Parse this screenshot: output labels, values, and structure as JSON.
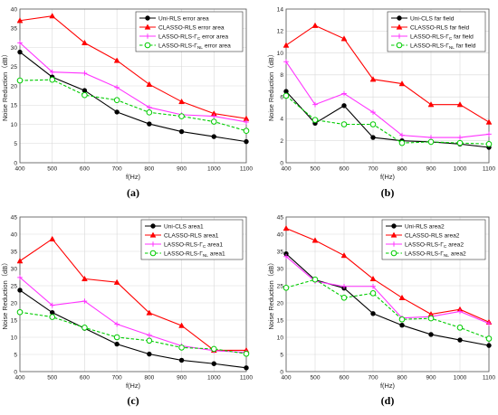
{
  "colors": {
    "black": "#000000",
    "red": "#ff0000",
    "magenta": "#ff33ff",
    "green": "#00cc00"
  },
  "chart_data": [
    {
      "type": "line",
      "caption": "(a)",
      "xlabel": "f(Hz)",
      "ylabel": "Noise Reduction（dB）",
      "x": [
        400,
        500,
        600,
        700,
        800,
        900,
        1000,
        1100
      ],
      "xlim": [
        400,
        1100
      ],
      "ylim": [
        0,
        40
      ],
      "yticks": [
        0,
        5,
        10,
        15,
        20,
        25,
        30,
        35,
        40
      ],
      "grid": true,
      "legend_position": "top-right",
      "series": [
        {
          "name": "Uni-RLS error area",
          "marker": "dot",
          "values": [
            28.8,
            22.3,
            18.8,
            13.2,
            10.1,
            8.1,
            6.8,
            5.5
          ]
        },
        {
          "name": "CLASSO-RLS error area",
          "marker": "triangle",
          "values": [
            37.0,
            38.2,
            31.2,
            26.6,
            20.4,
            15.9,
            12.8,
            11.5
          ]
        },
        {
          "name": "LASSO-RLS-Γ_C error area",
          "marker": "plus",
          "values": [
            31.2,
            23.6,
            23.3,
            19.6,
            14.4,
            12.5,
            12.1,
            10.6
          ]
        },
        {
          "name": "LASSO-RLS-Γ_NL error area",
          "marker": "circle",
          "dashed": true,
          "values": [
            21.4,
            21.6,
            17.6,
            16.3,
            13.1,
            12.1,
            10.7,
            8.3
          ]
        }
      ]
    },
    {
      "type": "line",
      "caption": "(b)",
      "xlabel": "f(Hz)",
      "ylabel": "Noise Reduction（dB）",
      "x": [
        400,
        500,
        600,
        700,
        800,
        900,
        1000,
        1100
      ],
      "xlim": [
        400,
        1100
      ],
      "ylim": [
        0,
        14
      ],
      "yticks": [
        0,
        2,
        4,
        6,
        8,
        10,
        12,
        14
      ],
      "grid": true,
      "legend_position": "top-right",
      "series": [
        {
          "name": "Uni-CLS far field",
          "marker": "dot",
          "values": [
            6.5,
            3.6,
            5.2,
            2.3,
            2.0,
            1.9,
            1.7,
            1.4
          ]
        },
        {
          "name": "CLASSO-RLS far field",
          "marker": "triangle",
          "values": [
            10.7,
            12.5,
            11.3,
            7.6,
            7.2,
            5.3,
            5.3,
            3.7
          ]
        },
        {
          "name": "LASSO-RLS-Γ_C far field",
          "marker": "plus",
          "values": [
            9.2,
            5.3,
            6.3,
            4.6,
            2.5,
            2.3,
            2.3,
            2.6
          ]
        },
        {
          "name": "LASSO-RLS-Γ_NL far field",
          "marker": "circle",
          "dashed": true,
          "values": [
            6.1,
            3.9,
            3.5,
            3.5,
            1.8,
            1.9,
            1.8,
            1.7
          ]
        }
      ]
    },
    {
      "type": "line",
      "caption": "(c)",
      "xlabel": "f(Hz)",
      "ylabel": "Noise Reduction（dB）",
      "x": [
        400,
        500,
        600,
        700,
        800,
        900,
        1000,
        1100
      ],
      "xlim": [
        400,
        1100
      ],
      "ylim": [
        0,
        45
      ],
      "yticks": [
        0,
        5,
        10,
        15,
        20,
        25,
        30,
        35,
        40,
        45
      ],
      "grid": true,
      "legend_position": "top-right",
      "series": [
        {
          "name": "Uni-CLS area1",
          "marker": "dot",
          "values": [
            23.7,
            17.2,
            12.6,
            8.0,
            5.1,
            3.3,
            2.3,
            1.1
          ]
        },
        {
          "name": "CLASSO-RLS area1",
          "marker": "triangle",
          "values": [
            32.2,
            38.6,
            27.0,
            26.0,
            17.1,
            13.4,
            6.2,
            6.2
          ]
        },
        {
          "name": "LASSO-RLS-Γ_C area1",
          "marker": "plus",
          "values": [
            27.4,
            19.3,
            20.5,
            13.8,
            10.6,
            7.5,
            6.1,
            5.6
          ]
        },
        {
          "name": "LASSO-RLS-Γ_NL area1",
          "marker": "circle",
          "dashed": true,
          "values": [
            17.3,
            15.9,
            12.8,
            10.0,
            9.0,
            7.0,
            6.6,
            5.2
          ]
        }
      ]
    },
    {
      "type": "line",
      "caption": "(d)",
      "xlabel": "f(Hz)",
      "ylabel": "Noise Reduction（dB）",
      "x": [
        400,
        500,
        600,
        700,
        800,
        900,
        1000,
        1100
      ],
      "xlim": [
        400,
        1100
      ],
      "ylim": [
        0,
        45
      ],
      "yticks": [
        0,
        5,
        10,
        15,
        20,
        25,
        30,
        35,
        40,
        45
      ],
      "grid": true,
      "legend_position": "top-right",
      "series": [
        {
          "name": "Uni-RLS area2",
          "marker": "dot",
          "values": [
            34.3,
            26.7,
            24.3,
            16.9,
            13.5,
            10.8,
            9.2,
            7.6
          ]
        },
        {
          "name": "CLASSO-RLS area2",
          "marker": "triangle",
          "values": [
            41.7,
            38.2,
            33.8,
            27.0,
            21.5,
            16.7,
            18.1,
            14.4
          ]
        },
        {
          "name": "LASSO-RLS-Γ_C area2",
          "marker": "plus",
          "values": [
            33.5,
            26.3,
            24.8,
            24.8,
            15.6,
            16.0,
            17.5,
            14.0
          ]
        },
        {
          "name": "LASSO-RLS-Γ_NL area2",
          "marker": "circle",
          "dashed": true,
          "values": [
            24.4,
            26.8,
            21.5,
            22.8,
            15.2,
            15.5,
            12.8,
            9.6
          ]
        }
      ]
    }
  ]
}
